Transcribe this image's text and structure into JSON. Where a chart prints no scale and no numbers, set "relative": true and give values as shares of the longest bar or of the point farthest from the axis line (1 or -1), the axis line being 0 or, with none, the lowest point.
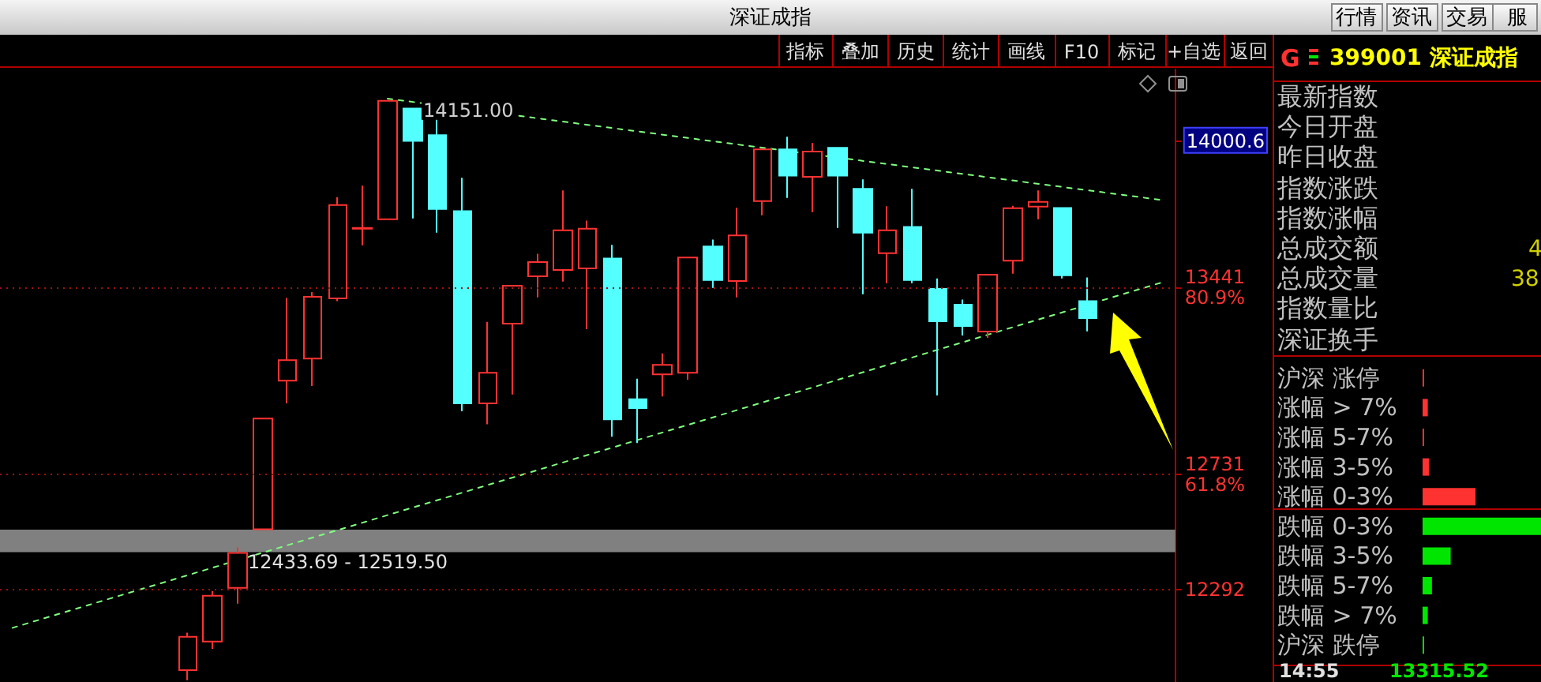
{
  "chart_data": [
    {
      "type": "candlestick",
      "categories": [
        null,
        null,
        null,
        null,
        null,
        null,
        null,
        null,
        null,
        null,
        null,
        null,
        null,
        null,
        null,
        null,
        null,
        null,
        null,
        null,
        null,
        null,
        null,
        null,
        null,
        null,
        null,
        null,
        null,
        null,
        null,
        null,
        null,
        null,
        null,
        null,
        null,
        null,
        null,
        null,
        null,
        null,
        null,
        null,
        null,
        null,
        null
      ],
      "ohlc": [
        null,
        null,
        null,
        null,
        null,
        null,
        null,
        [
          11985,
          12128,
          11947,
          12112
        ],
        [
          12094,
          12286,
          12066,
          12268
        ],
        [
          12298,
          12452,
          12238,
          12431
        ],
        [
          12521,
          12942,
          12521,
          12942
        ],
        [
          13086,
          13401,
          13000,
          13164
        ],
        [
          13170,
          13423,
          13066,
          13405
        ],
        [
          13399,
          13784,
          13389,
          13754
        ],
        [
          13664,
          13828,
          13601,
          13667
        ],
        [
          13700,
          14151,
          13700,
          14151
        ],
        [
          14121,
          14121,
          13703,
          13998
        ],
        [
          14020,
          14080,
          13649,
          13739
        ],
        [
          13731,
          13858,
          12970,
          13000
        ],
        [
          13000,
          13310,
          12920,
          13116
        ],
        [
          13303,
          13447,
          13034,
          13447
        ],
        [
          13483,
          13569,
          13403,
          13537
        ],
        [
          13507,
          13810,
          13463,
          13658
        ],
        [
          13513,
          13695,
          13282,
          13664
        ],
        [
          13551,
          13603,
          12873,
          12939
        ],
        [
          13016,
          13094,
          12849,
          12982
        ],
        [
          13110,
          13190,
          13026,
          13146
        ],
        [
          13116,
          13555,
          13090,
          13555
        ],
        [
          13597,
          13623,
          13439,
          13469
        ],
        [
          13465,
          13744,
          13403,
          13639
        ],
        [
          13769,
          13966,
          13715,
          13966
        ],
        [
          13966,
          14014,
          13781,
          13866
        ],
        [
          13862,
          13990,
          13727,
          13958
        ],
        [
          13972,
          13972,
          13667,
          13866
        ],
        [
          13816,
          13852,
          13415,
          13649
        ],
        [
          13571,
          13750,
          13457,
          13658
        ],
        [
          13671,
          13816,
          13457,
          13469
        ],
        [
          13435,
          13475,
          13030,
          13312
        ],
        [
          13375,
          13395,
          13258,
          13294
        ],
        [
          13273,
          13489,
          13249,
          13489
        ],
        [
          13543,
          13751,
          13493,
          13742
        ],
        [
          13748,
          13810,
          13700,
          13766
        ],
        [
          13743,
          13743,
          13475,
          13487
        ],
        [
          13389,
          13479,
          13274,
          13324
        ],
        null,
        null,
        null
      ],
      "colors": [
        null,
        null,
        null,
        null,
        null,
        null,
        null,
        "#ff3232",
        "#ff3232",
        "#ff3232",
        "#ff3232",
        "#ff3232",
        "#ff3232",
        "#ff3232",
        "#ff3232",
        "#ff3232",
        "#54ffff",
        "#54ffff",
        "#54ffff",
        "#ff3232",
        "#ff3232",
        "#ff3232",
        "#ff3232",
        "#ff3232",
        "#54ffff",
        "#54ffff",
        "#ff3232",
        "#ff3232",
        "#54ffff",
        "#ff3232",
        "#ff3232",
        "#54ffff",
        "#ff3232",
        "#54ffff",
        "#54ffff",
        "#ff3232",
        "#54ffff",
        "#54ffff",
        "#54ffff",
        "#ff3232",
        "#ff3232",
        "#ff3232",
        "#54ffff",
        "#54ffff",
        null,
        null,
        null
      ],
      "series": [
        {
          "type": "line",
          "color": "#80ff80",
          "line_style": "dashed",
          "values": [
            12146,
            null,
            null,
            null,
            null,
            null,
            null,
            null,
            null,
            null,
            null,
            null,
            null,
            null,
            null,
            null,
            null,
            null,
            null,
            null,
            null,
            null,
            null,
            null,
            null,
            null,
            null,
            null,
            null,
            null,
            null,
            null,
            null,
            null,
            null,
            null,
            null,
            null,
            null,
            null,
            null,
            null,
            null,
            null,
            null,
            null,
            13461
          ]
        },
        {
          "type": "line",
          "color": "#80ff80",
          "line_style": "dashed",
          "values": [
            null,
            null,
            null,
            null,
            null,
            null,
            null,
            null,
            null,
            null,
            null,
            null,
            null,
            null,
            null,
            14159,
            null,
            null,
            null,
            null,
            null,
            null,
            null,
            null,
            null,
            null,
            null,
            null,
            null,
            null,
            null,
            null,
            null,
            null,
            null,
            null,
            null,
            null,
            null,
            null,
            null,
            null,
            null,
            null,
            null,
            null,
            13773
          ]
        }
      ],
      "marker": "none",
      "ylim": [
        11940,
        14270
      ],
      "yticks": [
        {
          "value": 12292,
          "label": "12292"
        },
        {
          "value": 12731,
          "label": "12731\n61.8%"
        },
        {
          "value": 13441,
          "label": "13441\n80.9%"
        },
        {
          "value": 14000.6,
          "label": "14000.6"
        }
      ],
      "ref_lines": [
        {
          "axis": "y",
          "value": 13441,
          "color": "#a01010",
          "line_style": "dotted"
        },
        {
          "axis": "y",
          "value": 12731,
          "color": "#a01010",
          "line_style": "dotted"
        },
        {
          "axis": "y",
          "value": 12292,
          "color": "#a01010",
          "line_style": "dotted"
        }
      ],
      "bands": [
        {
          "axis": "y",
          "from": 12433.69,
          "to": 12519.5,
          "label": "12433.69 - 12519.50",
          "color": "#808080"
        }
      ],
      "annotations": [
        {
          "text": "14151.00",
          "y": 14151
        }
      ]
    },
    {
      "type": "other",
      "title": "399001 深证成指",
      "annotations": [
        "深证成指",
        "指标",
        "叠加",
        "历史",
        "统计",
        "画线",
        "F10",
        "标记",
        "+自选",
        "返回",
        "行情",
        "资讯",
        "交易",
        "服",
        "G",
        "最新指数",
        "今日开盘",
        "昨日收盘",
        "指数涨跌",
        "指数涨幅",
        "总成交额",
        "总成交量",
        "指数量比",
        "深证换手",
        "4",
        "38",
        "14:55",
        "13315.52"
      ]
    },
    {
      "type": "bar",
      "orientation": "horizontal",
      "relative": true,
      "categories": [
        "沪深 涨停",
        "涨幅 > 7%",
        "涨幅 5-7%",
        "涨幅 3-5%",
        "涨幅 0-3%",
        "跌幅 0-3%",
        "跌幅 3-5%",
        "跌幅 5-7%",
        "跌幅 > 7%",
        "沪深 跌停"
      ],
      "values": [
        0.013,
        0.044,
        0.013,
        0.053,
        0.447,
        1,
        0.237,
        0.079,
        0.044,
        0.013
      ],
      "colors": [
        "#ff3232",
        "#ff3232",
        "#ff3232",
        "#ff3232",
        "#ff3232",
        "#00e600",
        "#00e600",
        "#00e600",
        "#00e600",
        "#00e600"
      ]
    }
  ]
}
